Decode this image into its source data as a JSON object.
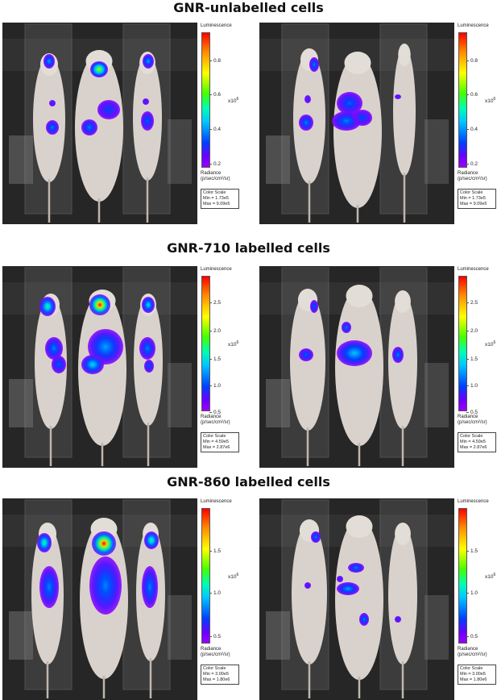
{
  "sections": [
    {
      "title": "GNR-unlabelled cells",
      "panels": [
        {
          "scale_label": "Luminescence",
          "ticks": [
            "0.8",
            "0.6",
            "0.4",
            "0.2"
          ],
          "exponent": "x10",
          "exponent_power": "6",
          "radiance_label": "Radiance",
          "radiance_units": "(p/sec/cm²/sr)",
          "color_scale_label": "Color Scale",
          "min": "Min = 1.73e5",
          "max": "Max = 9.09e5"
        },
        {
          "scale_label": "Luminescence",
          "ticks": [
            "0.8",
            "0.6",
            "0.4",
            "0.2"
          ],
          "exponent": "x10",
          "exponent_power": "6",
          "radiance_label": "Radiance",
          "radiance_units": "(p/sec/cm²/sr)",
          "color_scale_label": "Color Scale",
          "min": "Min = 1.73e5",
          "max": "Max = 9.09e5"
        }
      ]
    },
    {
      "title": "GNR-710 labelled cells",
      "panels": [
        {
          "scale_label": "Luminescence",
          "ticks": [
            "2.5",
            "2.0",
            "1.5",
            "1.0",
            "0.5"
          ],
          "exponent": "x10",
          "exponent_power": "6",
          "radiance_label": "Radiance",
          "radiance_units": "(p/sec/cm²/sr)",
          "color_scale_label": "Color Scale",
          "min": "Min = 4.59e5",
          "max": "Max = 2.87e6"
        },
        {
          "scale_label": "Luminescence",
          "ticks": [
            "2.5",
            "2.0",
            "1.5",
            "1.0",
            "0.5"
          ],
          "exponent": "x10",
          "exponent_power": "6",
          "radiance_label": "Radiance",
          "radiance_units": "(p/sec/cm²/sr)",
          "color_scale_label": "Color Scale",
          "min": "Min = 4.59e5",
          "max": "Max = 2.87e6"
        }
      ]
    },
    {
      "title": "GNR-860 labelled cells",
      "panels": [
        {
          "scale_label": "Luminescence",
          "ticks": [
            "1.5",
            "1.0",
            "0.5"
          ],
          "exponent": "x10",
          "exponent_power": "6",
          "radiance_label": "Radiance",
          "radiance_units": "(p/sec/cm²/sr)",
          "color_scale_label": "Color Scale",
          "min": "Min = 3.00e5",
          "max": "Max = 1.80e6"
        },
        {
          "scale_label": "Luminescence",
          "ticks": [
            "1.5",
            "1.0",
            "0.5"
          ],
          "exponent": "x10",
          "exponent_power": "6",
          "radiance_label": "Radiance",
          "radiance_units": "(p/sec/cm²/sr)",
          "color_scale_label": "Color Scale",
          "min": "Min = 3.00e5",
          "max": "Max = 1.80e6"
        }
      ]
    }
  ],
  "colors": {
    "hot": "#ff0000",
    "warm": "#ffff00",
    "mid": "#00ff80",
    "cool": "#0040ff",
    "low": "#8a00ff"
  }
}
